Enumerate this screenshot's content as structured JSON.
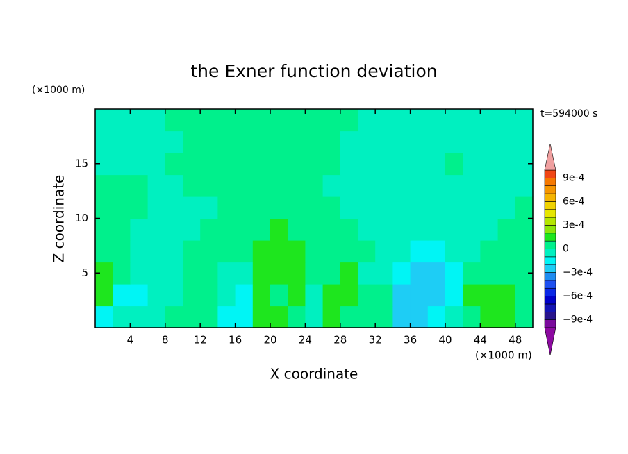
{
  "chart_data": {
    "type": "contour",
    "title": "the Exner function deviation",
    "x_label": "X coordinate",
    "y_label": "Z coordinate",
    "x_unit": "(×1000 m)",
    "y_unit": "(×1000 m)",
    "annotation": "t=594000 s",
    "xlim": [
      0,
      50
    ],
    "ylim": [
      0,
      20
    ],
    "xticks": [
      4,
      8,
      12,
      16,
      20,
      24,
      28,
      32,
      36,
      40,
      44,
      48
    ],
    "yticks": [
      5,
      10,
      15
    ],
    "x": [
      1,
      3,
      5,
      7,
      9,
      11,
      13,
      15,
      17,
      19,
      21,
      23,
      25,
      27,
      29,
      31,
      33,
      35,
      37,
      39,
      41,
      43,
      45,
      47,
      49
    ],
    "y": [
      1,
      3,
      5,
      7,
      9,
      11,
      13,
      15,
      17,
      19
    ],
    "z": [
      [
        -0.00015,
        -5e-05,
        -5e-05,
        -5e-05,
        5e-05,
        5e-05,
        5e-05,
        -0.00015,
        -0.00015,
        0.00015,
        0.00015,
        5e-05,
        -5e-05,
        0.00015,
        5e-05,
        5e-05,
        5e-05,
        -0.00025,
        -0.00025,
        -0.00015,
        -5e-05,
        5e-05,
        0.00015,
        0.00015,
        5e-05
      ],
      [
        0.00015,
        -0.00015,
        -0.00015,
        -5e-05,
        -5e-05,
        5e-05,
        5e-05,
        -5e-05,
        -0.00015,
        0.00015,
        5e-05,
        0.00015,
        -5e-05,
        0.00015,
        0.00015,
        5e-05,
        5e-05,
        -0.00025,
        -0.00025,
        -0.00025,
        -0.00015,
        0.00015,
        0.00015,
        0.00015,
        5e-05
      ],
      [
        0.00015,
        5e-05,
        -5e-05,
        -5e-05,
        -5e-05,
        5e-05,
        5e-05,
        -5e-05,
        -5e-05,
        0.00015,
        0.00015,
        0.00015,
        5e-05,
        5e-05,
        0.00015,
        -5e-05,
        -5e-05,
        -0.00015,
        -0.00025,
        -0.00025,
        -0.00015,
        5e-05,
        5e-05,
        5e-05,
        5e-05
      ],
      [
        5e-05,
        5e-05,
        -5e-05,
        -5e-05,
        -5e-05,
        5e-05,
        5e-05,
        5e-05,
        5e-05,
        0.00015,
        0.00015,
        0.00015,
        5e-05,
        5e-05,
        5e-05,
        5e-05,
        -5e-05,
        -5e-05,
        -0.00015,
        -0.00015,
        -5e-05,
        -5e-05,
        5e-05,
        5e-05,
        5e-05
      ],
      [
        5e-05,
        5e-05,
        -5e-05,
        -5e-05,
        -5e-05,
        -5e-05,
        5e-05,
        5e-05,
        5e-05,
        5e-05,
        0.00015,
        5e-05,
        5e-05,
        5e-05,
        5e-05,
        -5e-05,
        -5e-05,
        -5e-05,
        -5e-05,
        -5e-05,
        -5e-05,
        -5e-05,
        -5e-05,
        5e-05,
        5e-05
      ],
      [
        5e-05,
        5e-05,
        5e-05,
        -5e-05,
        -5e-05,
        -5e-05,
        -5e-05,
        5e-05,
        5e-05,
        5e-05,
        5e-05,
        5e-05,
        5e-05,
        5e-05,
        -5e-05,
        -5e-05,
        -5e-05,
        -5e-05,
        -5e-05,
        -5e-05,
        -5e-05,
        -5e-05,
        -5e-05,
        -5e-05,
        5e-05
      ],
      [
        5e-05,
        5e-05,
        5e-05,
        -5e-05,
        -5e-05,
        5e-05,
        5e-05,
        5e-05,
        5e-05,
        5e-05,
        5e-05,
        5e-05,
        5e-05,
        -5e-05,
        -5e-05,
        -5e-05,
        -5e-05,
        -5e-05,
        -5e-05,
        -5e-05,
        -5e-05,
        -5e-05,
        -5e-05,
        -5e-05,
        -5e-05
      ],
      [
        -5e-05,
        -5e-05,
        -5e-05,
        -5e-05,
        5e-05,
        5e-05,
        5e-05,
        5e-05,
        5e-05,
        5e-05,
        5e-05,
        5e-05,
        5e-05,
        5e-05,
        -5e-05,
        -5e-05,
        -5e-05,
        -5e-05,
        -5e-05,
        -5e-05,
        5e-05,
        -5e-05,
        -5e-05,
        -5e-05,
        -5e-05
      ],
      [
        -5e-05,
        -5e-05,
        -5e-05,
        -5e-05,
        -5e-05,
        5e-05,
        5e-05,
        5e-05,
        5e-05,
        5e-05,
        5e-05,
        5e-05,
        5e-05,
        5e-05,
        -5e-05,
        -5e-05,
        -5e-05,
        -5e-05,
        -5e-05,
        -5e-05,
        -5e-05,
        -5e-05,
        -5e-05,
        -5e-05,
        -5e-05
      ],
      [
        -5e-05,
        -5e-05,
        -5e-05,
        -5e-05,
        5e-05,
        5e-05,
        5e-05,
        5e-05,
        5e-05,
        5e-05,
        5e-05,
        5e-05,
        5e-05,
        5e-05,
        5e-05,
        -5e-05,
        -5e-05,
        -5e-05,
        -5e-05,
        -5e-05,
        -5e-05,
        -5e-05,
        -5e-05,
        -5e-05,
        -5e-05
      ]
    ],
    "colorbar": {
      "levels": [
        -0.001,
        -0.0009,
        -0.0008,
        -0.0007,
        -0.0006,
        -0.0005,
        -0.0004,
        -0.0003,
        -0.0002,
        -0.0001,
        0,
        0.0001,
        0.0002,
        0.0003,
        0.0004,
        0.0005,
        0.0006,
        0.0007,
        0.0008,
        0.0009,
        0.001
      ],
      "colors": [
        "#7a0a9c",
        "#28148c",
        "#1414b4",
        "#0000c8",
        "#0a28e6",
        "#1e50f0",
        "#1e8cf0",
        "#1ecdf5",
        "#00f5f5",
        "#00f0c0",
        "#00f08c",
        "#1ee61e",
        "#8ce60a",
        "#b4e600",
        "#e6e600",
        "#f0d200",
        "#f5b400",
        "#f59600",
        "#f57800",
        "#f04614"
      ],
      "over_color": "#f0a0a0",
      "under_color": "#8c0aa0",
      "ticks": [
        {
          "value": 0.0009,
          "label": "9e-4"
        },
        {
          "value": 0.0006,
          "label": "6e-4"
        },
        {
          "value": 0.0003,
          "label": "3e-4"
        },
        0,
        {
          "value": -0.0003,
          "label": "−3e-4"
        },
        {
          "value": -0.0006,
          "label": "−6e-4"
        },
        {
          "value": -0.0009,
          "label": "−9e-4"
        }
      ]
    }
  }
}
